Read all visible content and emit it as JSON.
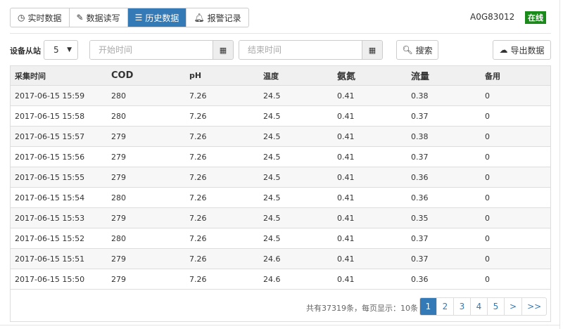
{
  "tabs": [
    {
      "label": "实时数据",
      "icon": "clock-icon"
    },
    {
      "label": "数据读写",
      "icon": "pencil-icon"
    },
    {
      "label": "历史数据",
      "icon": "list-icon",
      "active": true
    },
    {
      "label": "报警记录",
      "icon": "bell-icon"
    }
  ],
  "device": {
    "id": "A0G83012",
    "status": "在线",
    "status_color": "#1a8a1a"
  },
  "filter": {
    "station_label": "设备从站",
    "station_value": "5",
    "start_placeholder": "开始时间",
    "end_placeholder": "结束时间",
    "search_label": "搜索",
    "export_label": "导出数据"
  },
  "table": {
    "headers": [
      "采集时间",
      "COD",
      "pH",
      "温度",
      "氨氮",
      "流量",
      "备用"
    ],
    "rows": [
      [
        "2017-06-15 15:59",
        "280",
        "7.26",
        "24.5",
        "0.41",
        "0.38",
        "0"
      ],
      [
        "2017-06-15 15:58",
        "280",
        "7.26",
        "24.5",
        "0.41",
        "0.37",
        "0"
      ],
      [
        "2017-06-15 15:57",
        "279",
        "7.26",
        "24.5",
        "0.41",
        "0.38",
        "0"
      ],
      [
        "2017-06-15 15:56",
        "279",
        "7.26",
        "24.5",
        "0.41",
        "0.37",
        "0"
      ],
      [
        "2017-06-15 15:55",
        "279",
        "7.26",
        "24.5",
        "0.41",
        "0.36",
        "0"
      ],
      [
        "2017-06-15 15:54",
        "280",
        "7.26",
        "24.5",
        "0.41",
        "0.36",
        "0"
      ],
      [
        "2017-06-15 15:53",
        "279",
        "7.26",
        "24.5",
        "0.41",
        "0.35",
        "0"
      ],
      [
        "2017-06-15 15:52",
        "280",
        "7.26",
        "24.5",
        "0.41",
        "0.37",
        "0"
      ],
      [
        "2017-06-15 15:51",
        "279",
        "7.26",
        "24.6",
        "0.41",
        "0.37",
        "0"
      ],
      [
        "2017-06-15 15:50",
        "279",
        "7.26",
        "24.6",
        "0.41",
        "0.36",
        "0"
      ]
    ]
  },
  "pagination": {
    "summary": "共有37319条，每页显示：10条",
    "pages": [
      "1",
      "2",
      "3",
      "4",
      "5",
      ">",
      ">>"
    ],
    "current": "1"
  },
  "accent": "#337ab7"
}
